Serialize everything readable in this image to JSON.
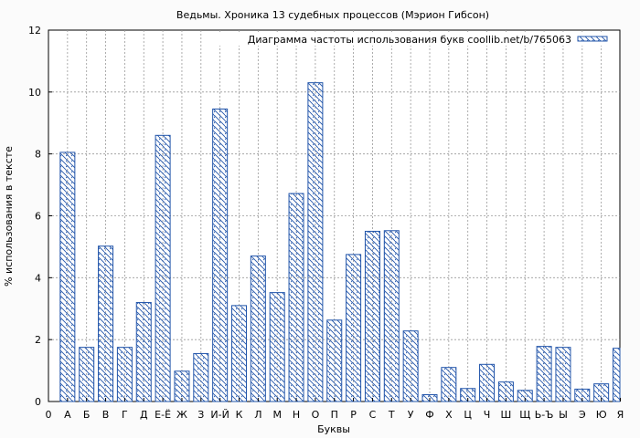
{
  "chart_data": {
    "type": "bar",
    "title": "Ведьмы. Хроника 13 судебных процессов (Мэрион Гибсон)",
    "xlabel": "Буквы",
    "ylabel": "% использования в тексте",
    "ylim": [
      0,
      12
    ],
    "yticks": [
      0,
      2,
      4,
      6,
      8,
      10,
      12
    ],
    "x_start_label": "0",
    "grid": true,
    "legend_position": "top-right",
    "bar_color": "#2255aa",
    "series": [
      {
        "name": "Диаграмма частоты использования букв coollib.net/b/765063",
        "values": [
          8.05,
          1.75,
          5.02,
          1.75,
          3.2,
          8.6,
          0.98,
          1.55,
          9.45,
          3.1,
          4.7,
          3.52,
          6.72,
          10.3,
          2.63,
          4.75,
          5.5,
          5.52,
          2.28,
          0.22,
          1.1,
          0.42,
          1.2,
          0.63,
          0.36,
          1.78,
          1.75,
          0.4,
          0.57,
          1.72
        ]
      }
    ],
    "categories": [
      "А",
      "Б",
      "В",
      "Г",
      "Д",
      "Е-Ё",
      "Ж",
      "З",
      "И-Й",
      "К",
      "Л",
      "М",
      "Н",
      "О",
      "П",
      "Р",
      "С",
      "Т",
      "У",
      "Ф",
      "Х",
      "Ц",
      "Ч",
      "Ш",
      "Щ",
      "Ь-Ъ",
      "Ы",
      "Э",
      "Ю",
      "Я"
    ]
  }
}
